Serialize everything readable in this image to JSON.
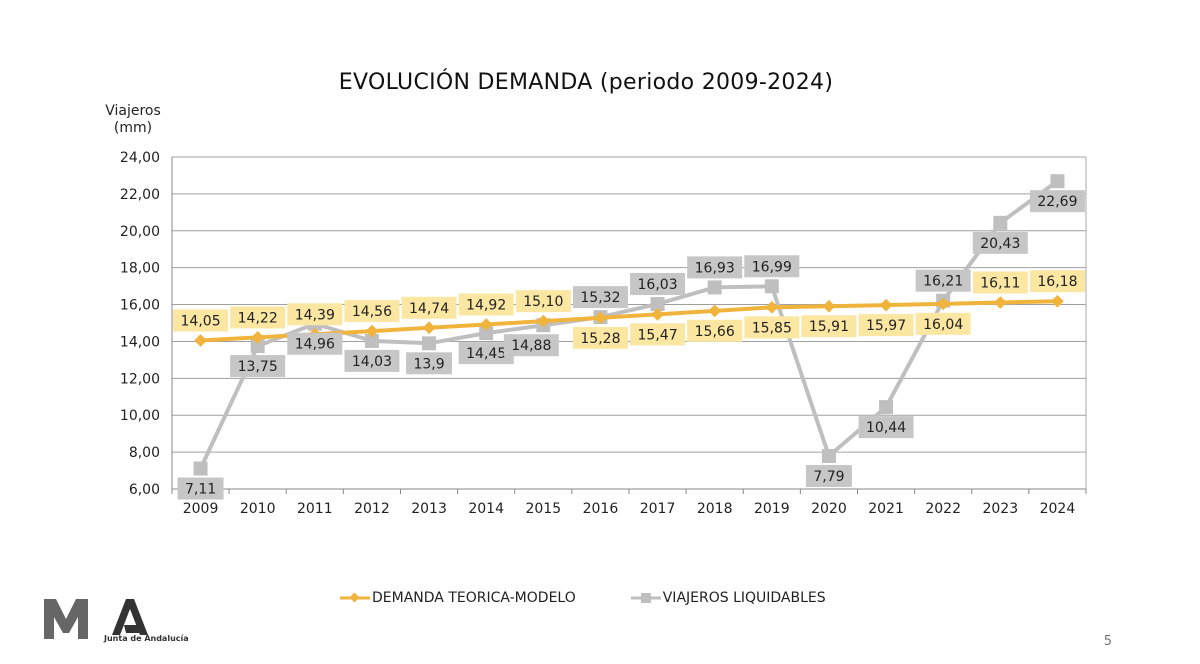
{
  "chart_data": {
    "type": "line",
    "title": "EVOLUCIÓN DEMANDA (periodo 2009-2024)",
    "ylabel": "Viajeros (mm)",
    "ylim": [
      6,
      24
    ],
    "yticks": [
      "6,00",
      "8,00",
      "10,00",
      "12,00",
      "14,00",
      "16,00",
      "18,00",
      "20,00",
      "22,00",
      "24,00"
    ],
    "grid": true,
    "legend_position": "bottom",
    "categories": [
      "2009",
      "2010",
      "2011",
      "2012",
      "2013",
      "2014",
      "2015",
      "2016",
      "2017",
      "2018",
      "2019",
      "2020",
      "2021",
      "2022",
      "2023",
      "2024"
    ],
    "series": [
      {
        "name": "DEMANDA TEORICA-MODELO",
        "color": "#f0b43c",
        "label_bg": "#fbe6a2",
        "marker": "diamond",
        "values": [
          14.05,
          14.22,
          14.39,
          14.56,
          14.74,
          14.92,
          15.1,
          15.28,
          15.47,
          15.66,
          15.85,
          15.91,
          15.97,
          16.04,
          16.11,
          16.18
        ],
        "labels": [
          "14,05",
          "14,22",
          "14,39",
          "14,56",
          "14,74",
          "14,92",
          "15,10",
          "15,28",
          "15,47",
          "15,66",
          "15,85",
          "15,91",
          "15,97",
          "16,04",
          "16,11",
          "16,18"
        ]
      },
      {
        "name": "VIAJEROS LIQUIDABLES",
        "color": "#bfbfbf",
        "label_bg": "#c6c6c6",
        "marker": "square",
        "values": [
          7.11,
          13.75,
          14.96,
          14.03,
          13.9,
          14.45,
          14.88,
          15.32,
          16.03,
          16.93,
          16.99,
          7.79,
          10.44,
          16.21,
          20.43,
          22.69
        ],
        "labels": [
          "7,11",
          "13,75",
          "14,96",
          "14,03",
          "13,9",
          "14,45",
          "14,88",
          "15,32",
          "16,03",
          "16,93",
          "16,99",
          "7,79",
          "10,44",
          "16,21",
          "20,43",
          "22,69"
        ]
      }
    ]
  },
  "footer": {
    "logo_text": "Junta de Andalucía",
    "page_number": "5"
  }
}
